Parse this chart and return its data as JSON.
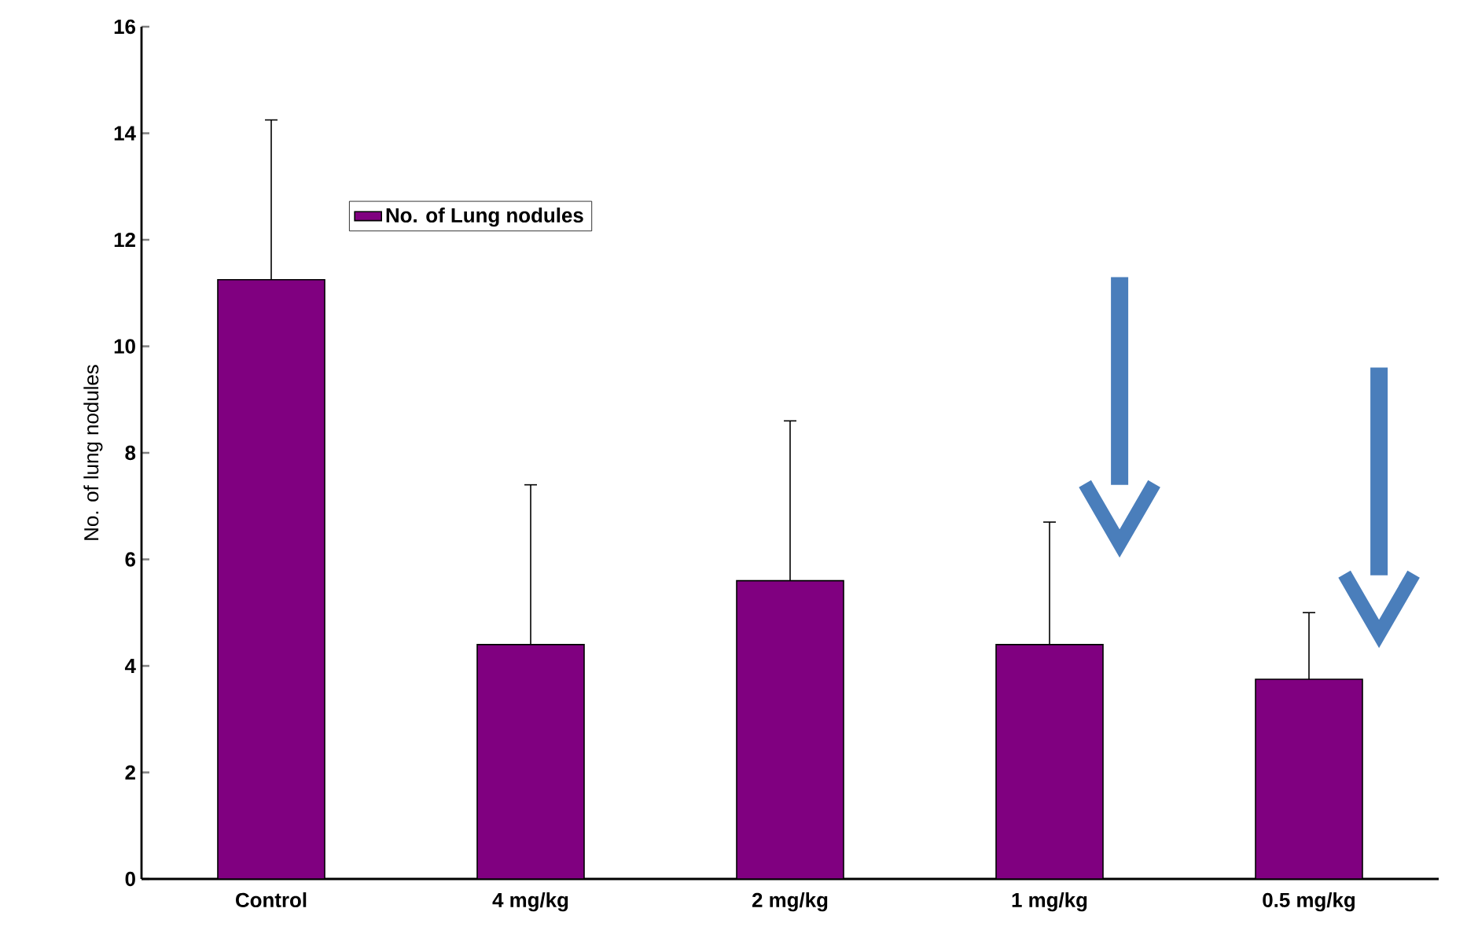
{
  "chart_data": {
    "type": "bar",
    "ylabel": "No. of lung nodules",
    "categories": [
      "Control",
      "4 mg/kg",
      "2 mg/kg",
      "1 mg/kg",
      "0.5 mg/kg"
    ],
    "series": [
      {
        "name": "No. of Lung nodules",
        "color": "#800080",
        "values": [
          11.25,
          4.4,
          5.6,
          4.4,
          3.75
        ],
        "errors": [
          [
            11.25,
            14.25
          ],
          [
            4.4,
            7.4
          ],
          [
            5.6,
            8.6
          ],
          [
            4.4,
            6.7
          ],
          [
            3.75,
            5.0
          ]
        ]
      }
    ],
    "ylim": [
      0,
      16
    ],
    "yticks": [
      0,
      2,
      4,
      6,
      8,
      10,
      12,
      14,
      16
    ],
    "grid": false,
    "legend": "top left"
  }
}
